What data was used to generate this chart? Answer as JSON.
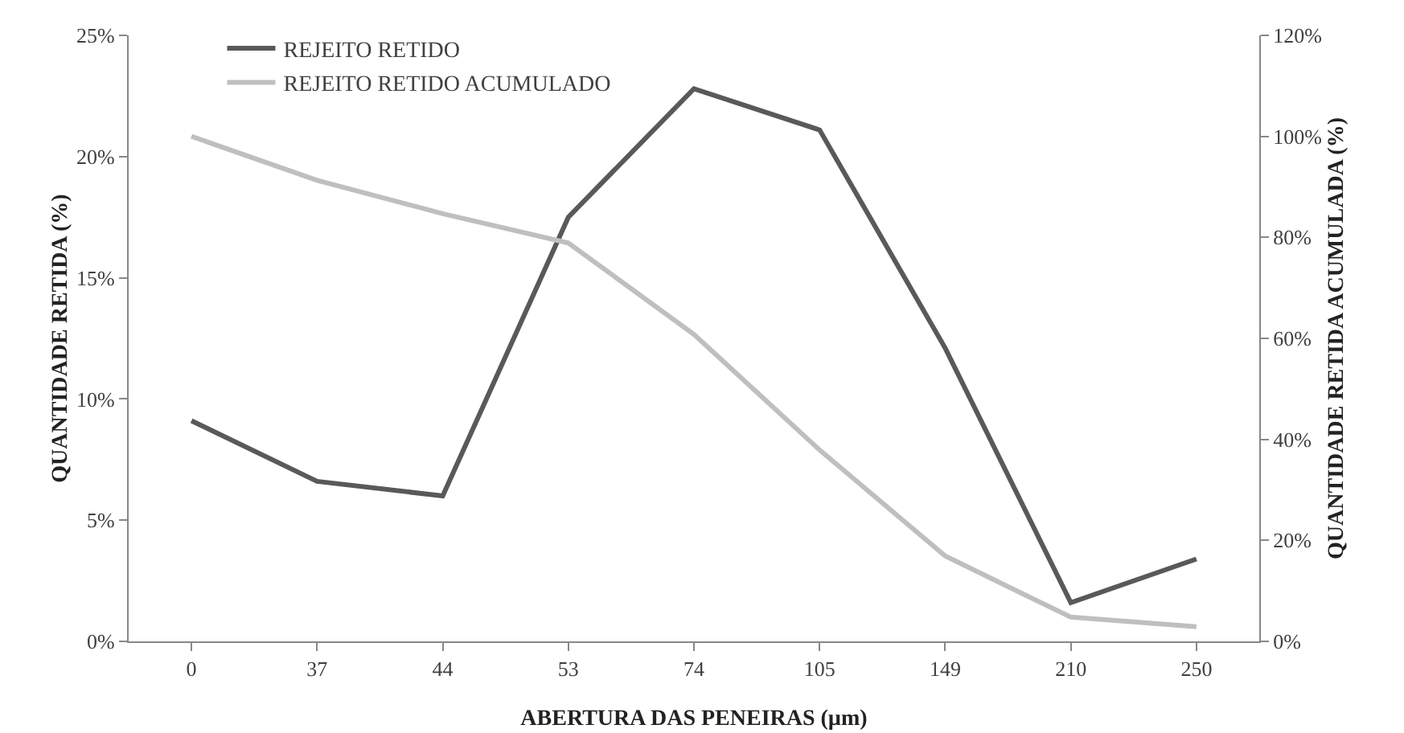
{
  "chart_data": {
    "type": "line",
    "xlabel": "ABERTURA DAS PENEIRAS (µm)",
    "ylabel": "QUANTIDADE RETIDA (%)",
    "y2label": "QUANTIDADE RETIDA ACUMULADA (%)",
    "categories": [
      "0",
      "37",
      "44",
      "53",
      "74",
      "105",
      "149",
      "210",
      "250"
    ],
    "series": [
      {
        "name": "REJEITO RETIDO",
        "color": "#595959",
        "values": [
          9.1,
          6.6,
          6.0,
          17.5,
          22.8,
          21.1,
          12.1,
          1.6,
          3.4
        ]
      },
      {
        "name": "REJEITO RETIDO ACUMULADO",
        "color": "#bfbfbf",
        "axis": "y2",
        "values": [
          100,
          91.3,
          84.7,
          78.9,
          60.8,
          37.9,
          16.9,
          4.8,
          2.9
        ]
      }
    ],
    "ylim": [
      0,
      25
    ],
    "yticks": [
      {
        "value": 0,
        "label": "0%"
      },
      {
        "value": 5,
        "label": "5%"
      },
      {
        "value": 10,
        "label": "10%"
      },
      {
        "value": 15,
        "label": "15%"
      },
      {
        "value": 20,
        "label": "20%"
      },
      {
        "value": 25,
        "label": "25%"
      }
    ],
    "y2lim": [
      0,
      120
    ],
    "y2ticks": [
      {
        "value": 0,
        "label": "0%"
      },
      {
        "value": 20,
        "label": "20%"
      },
      {
        "value": 40,
        "label": "40%"
      },
      {
        "value": 60,
        "label": "60%"
      },
      {
        "value": 80,
        "label": "80%"
      },
      {
        "value": 100,
        "label": "100%"
      },
      {
        "value": 120,
        "label": "120%"
      }
    ],
    "grid": false,
    "legend": "top left",
    "marker": "none",
    "line_style": "solid"
  }
}
